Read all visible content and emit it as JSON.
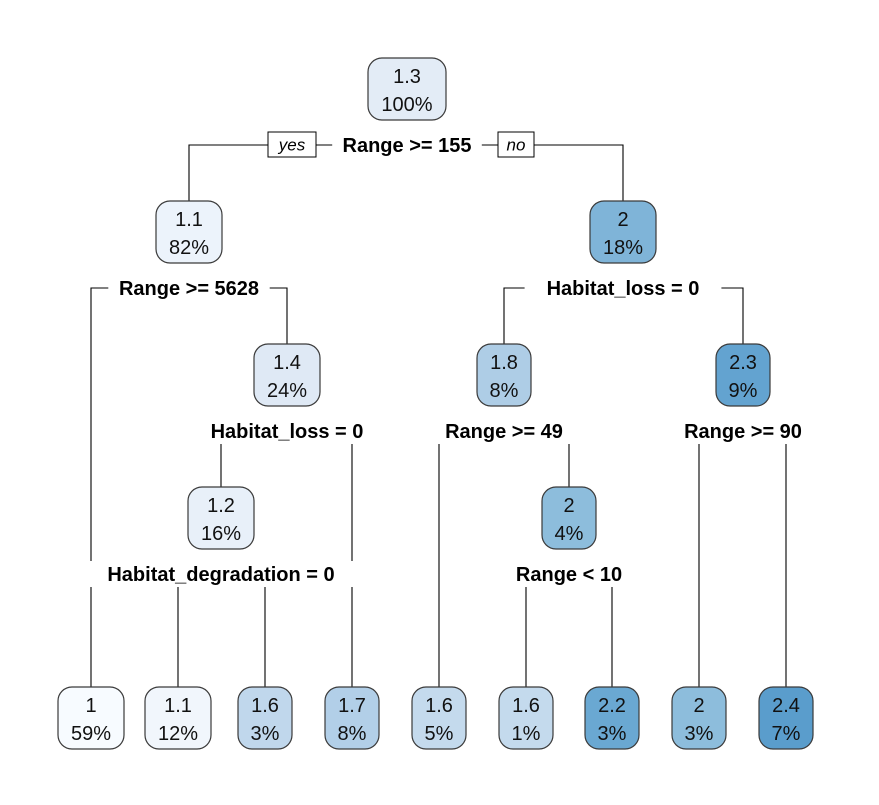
{
  "labels": {
    "yes": "yes",
    "no": "no"
  },
  "nodes": [
    {
      "id": "n1",
      "value": "1.3",
      "percent": "100%",
      "fill": "#e3ecf6"
    },
    {
      "id": "n2",
      "value": "1.1",
      "percent": "82%",
      "fill": "#ecf3fb"
    },
    {
      "id": "n3",
      "value": "2",
      "percent": "18%",
      "fill": "#7fb4d8"
    },
    {
      "id": "n4",
      "value": "1.4",
      "percent": "24%",
      "fill": "#dfe9f5"
    },
    {
      "id": "n5",
      "value": "1.8",
      "percent": "8%",
      "fill": "#aecde6"
    },
    {
      "id": "n6",
      "value": "2.3",
      "percent": "9%",
      "fill": "#63a3d0"
    },
    {
      "id": "n7",
      "value": "1.2",
      "percent": "16%",
      "fill": "#e8f0f9"
    },
    {
      "id": "n8",
      "value": "2",
      "percent": "4%",
      "fill": "#8dbddc"
    },
    {
      "id": "n9",
      "value": "1",
      "percent": "59%",
      "fill": "#f7fbff"
    },
    {
      "id": "n10",
      "value": "1.1",
      "percent": "12%",
      "fill": "#f1f6fc"
    },
    {
      "id": "n11",
      "value": "1.6",
      "percent": "3%",
      "fill": "#c0d7ec"
    },
    {
      "id": "n12",
      "value": "1.7",
      "percent": "8%",
      "fill": "#b2cfe8"
    },
    {
      "id": "n13",
      "value": "1.6",
      "percent": "5%",
      "fill": "#c4daed"
    },
    {
      "id": "n14",
      "value": "1.6",
      "percent": "1%",
      "fill": "#c4daed"
    },
    {
      "id": "n15",
      "value": "2.2",
      "percent": "3%",
      "fill": "#6aa8d2"
    },
    {
      "id": "n16",
      "value": "2",
      "percent": "3%",
      "fill": "#8dbddc"
    },
    {
      "id": "n17",
      "value": "2.4",
      "percent": "7%",
      "fill": "#5a9dcc"
    }
  ],
  "splits": [
    {
      "id": "s1",
      "text": "Range >= 155"
    },
    {
      "id": "s2",
      "text": "Range >= 5628"
    },
    {
      "id": "s3",
      "text": "Habitat_loss = 0"
    },
    {
      "id": "s4",
      "text": "Habitat_loss = 0"
    },
    {
      "id": "s5",
      "text": "Range >= 49"
    },
    {
      "id": "s6",
      "text": "Range >= 90"
    },
    {
      "id": "s7",
      "text": "Habitat_degradation = 0"
    },
    {
      "id": "s8",
      "text": "Range < 10"
    }
  ]
}
